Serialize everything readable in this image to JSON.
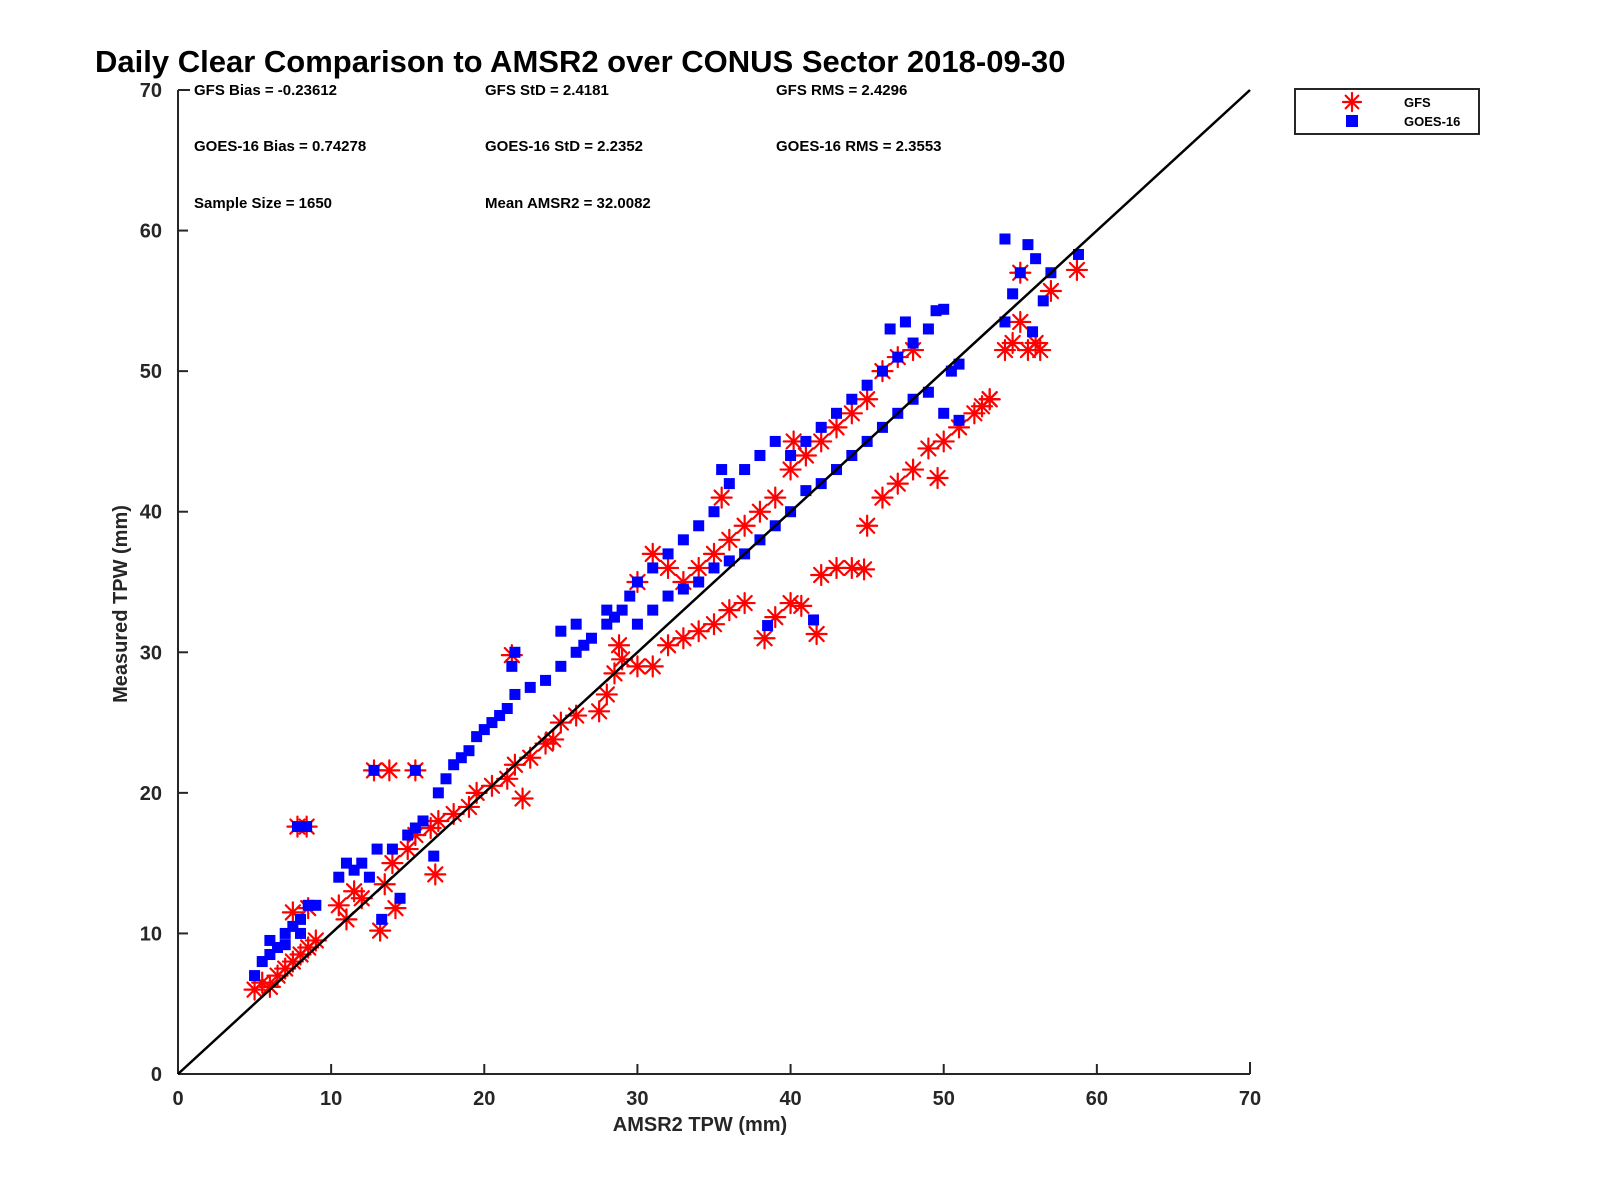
{
  "chart_data": {
    "type": "scatter",
    "title": "Daily Clear Comparison to AMSR2 over CONUS Sector 2018-09-30",
    "xlabel": "AMSR2 TPW (mm)",
    "ylabel": "Measured TPW (mm)",
    "xlim": [
      0,
      70
    ],
    "ylim": [
      0,
      70
    ],
    "xticks": [
      "0",
      "10",
      "20",
      "30",
      "40",
      "50",
      "60",
      "70"
    ],
    "yticks": [
      "0",
      "10",
      "20",
      "30",
      "40",
      "50",
      "60",
      "70"
    ],
    "grid": false,
    "legend_position": "outside-top-right",
    "reference_line": {
      "x": [
        0,
        70
      ],
      "y": [
        0,
        70
      ]
    },
    "stats": {
      "gfs_bias": "GFS Bias = -0.23612",
      "gfs_std": "GFS StD = 2.4181",
      "gfs_rms": "GFS RMS = 2.4296",
      "goes_bias": "GOES-16 Bias = 0.74278",
      "goes_std": "GOES-16 StD = 2.2352",
      "goes_rms": "GOES-16 RMS = 2.3553",
      "sample_size": "Sample Size = 1650",
      "mean_amsr2": "Mean AMSR2 = 32.0082"
    },
    "series": [
      {
        "name": "GFS",
        "marker": "asterisk",
        "color": "#ff0000",
        "points": [
          [
            5,
            6
          ],
          [
            5.5,
            6.5
          ],
          [
            6,
            6.2
          ],
          [
            6.5,
            7
          ],
          [
            7,
            7.5
          ],
          [
            7.5,
            8
          ],
          [
            8,
            8.5
          ],
          [
            8.5,
            9
          ],
          [
            9,
            9.5
          ],
          [
            7.8,
            17.6
          ],
          [
            8.4,
            17.6
          ],
          [
            7.5,
            11.5
          ],
          [
            8.5,
            11.8
          ],
          [
            10.5,
            12
          ],
          [
            11,
            11
          ],
          [
            11.5,
            13
          ],
          [
            12,
            12.5
          ],
          [
            13.2,
            10.2
          ],
          [
            13.5,
            13.5
          ],
          [
            14.2,
            11.8
          ],
          [
            14,
            15
          ],
          [
            15,
            16
          ],
          [
            15.5,
            17
          ],
          [
            16.5,
            17.5
          ],
          [
            16.8,
            14.2
          ],
          [
            17,
            18
          ],
          [
            18,
            18.5
          ],
          [
            19,
            19
          ],
          [
            19.5,
            20
          ],
          [
            20.5,
            20.5
          ],
          [
            21.5,
            21
          ],
          [
            22,
            22
          ],
          [
            22.5,
            19.6
          ],
          [
            23,
            22.5
          ],
          [
            24,
            23.5
          ],
          [
            24.5,
            23.8
          ],
          [
            25,
            25
          ],
          [
            26,
            25.5
          ],
          [
            27.5,
            25.8
          ],
          [
            28,
            27
          ],
          [
            28.5,
            28.5
          ],
          [
            29,
            29.5
          ],
          [
            30,
            29
          ],
          [
            31,
            29
          ],
          [
            32,
            30.5
          ],
          [
            33,
            31
          ],
          [
            34,
            31.5
          ],
          [
            35,
            32
          ],
          [
            36,
            33
          ],
          [
            37,
            33.5
          ],
          [
            38.3,
            31
          ],
          [
            39,
            32.5
          ],
          [
            40,
            33.5
          ],
          [
            40.7,
            33.3
          ],
          [
            41.7,
            31.3
          ],
          [
            42,
            35.5
          ],
          [
            43,
            36
          ],
          [
            44,
            36
          ],
          [
            44.8,
            35.9
          ],
          [
            45,
            39
          ],
          [
            46,
            41
          ],
          [
            47,
            42
          ],
          [
            48,
            43
          ],
          [
            49,
            44.5
          ],
          [
            49.6,
            42.4
          ],
          [
            50,
            45
          ],
          [
            51,
            46
          ],
          [
            52,
            47
          ],
          [
            53,
            48
          ],
          [
            21.8,
            29.8
          ],
          [
            12.8,
            21.6
          ],
          [
            13.8,
            21.6
          ],
          [
            15.5,
            21.6
          ],
          [
            28.8,
            30.5
          ],
          [
            30,
            35
          ],
          [
            31,
            37
          ],
          [
            32,
            36
          ],
          [
            33,
            35
          ],
          [
            34,
            36
          ],
          [
            35,
            37
          ],
          [
            35.5,
            41
          ],
          [
            36,
            38
          ],
          [
            37,
            39
          ],
          [
            38,
            40
          ],
          [
            39,
            41
          ],
          [
            40,
            43
          ],
          [
            40.2,
            45
          ],
          [
            41,
            44
          ],
          [
            42,
            45
          ],
          [
            43,
            46
          ],
          [
            44,
            47
          ],
          [
            45,
            48
          ],
          [
            46,
            50
          ],
          [
            47,
            51
          ],
          [
            48,
            51.5
          ],
          [
            54.5,
            52
          ],
          [
            55,
            53.5
          ],
          [
            55.5,
            51.5
          ],
          [
            56,
            52
          ],
          [
            56.3,
            51.5
          ],
          [
            57,
            55.7
          ],
          [
            55,
            57
          ],
          [
            58.7,
            57.2
          ],
          [
            54,
            51.5
          ],
          [
            52.5,
            47.5
          ],
          [
            53,
            48
          ]
        ]
      },
      {
        "name": "GOES-16",
        "marker": "square",
        "color": "#0000ff",
        "points": [
          [
            5,
            7
          ],
          [
            5.5,
            8
          ],
          [
            6,
            8.5
          ],
          [
            6.5,
            9
          ],
          [
            7,
            10
          ],
          [
            7.5,
            10.5
          ],
          [
            8,
            11
          ],
          [
            8.5,
            12
          ],
          [
            9,
            12
          ],
          [
            6,
            9.5
          ],
          [
            7,
            9.2
          ],
          [
            8,
            10
          ],
          [
            10.5,
            14
          ],
          [
            11,
            15
          ],
          [
            11.5,
            14.5
          ],
          [
            12,
            15
          ],
          [
            12.5,
            14
          ],
          [
            13,
            16
          ],
          [
            13.3,
            11
          ],
          [
            14,
            16
          ],
          [
            14.5,
            12.5
          ],
          [
            15,
            17
          ],
          [
            15.5,
            17.5
          ],
          [
            16,
            18
          ],
          [
            16.7,
            15.5
          ],
          [
            17,
            20
          ],
          [
            17.5,
            21
          ],
          [
            18,
            22
          ],
          [
            18.5,
            22.5
          ],
          [
            19,
            23
          ],
          [
            19.5,
            24
          ],
          [
            20,
            24.5
          ],
          [
            20.5,
            25
          ],
          [
            21,
            25.5
          ],
          [
            21.5,
            26
          ],
          [
            21.8,
            29
          ],
          [
            22,
            27
          ],
          [
            23,
            27.5
          ],
          [
            24,
            28
          ],
          [
            25,
            29
          ],
          [
            26,
            30
          ],
          [
            26.5,
            30.5
          ],
          [
            27,
            31
          ],
          [
            28,
            32
          ],
          [
            28.5,
            32.5
          ],
          [
            29,
            33
          ],
          [
            29.5,
            34
          ],
          [
            30,
            35
          ],
          [
            31,
            36
          ],
          [
            32,
            37
          ],
          [
            33,
            38
          ],
          [
            34,
            39
          ],
          [
            35,
            40
          ],
          [
            35.5,
            43
          ],
          [
            36,
            42
          ],
          [
            37,
            43
          ],
          [
            38,
            44
          ],
          [
            39,
            45
          ],
          [
            40,
            44
          ],
          [
            41,
            45
          ],
          [
            42,
            46
          ],
          [
            43,
            47
          ],
          [
            44,
            48
          ],
          [
            45,
            49
          ],
          [
            46,
            50
          ],
          [
            46.5,
            53
          ],
          [
            47,
            51
          ],
          [
            47.5,
            53.5
          ],
          [
            48,
            52
          ],
          [
            49,
            53
          ],
          [
            49.5,
            54.3
          ],
          [
            50,
            54.4
          ],
          [
            50.5,
            50
          ],
          [
            51,
            50.5
          ],
          [
            30,
            32
          ],
          [
            31,
            33
          ],
          [
            32,
            34
          ],
          [
            33,
            34.5
          ],
          [
            34,
            35
          ],
          [
            35,
            36
          ],
          [
            36,
            36.5
          ],
          [
            37,
            37
          ],
          [
            38,
            38
          ],
          [
            39,
            39
          ],
          [
            40,
            40
          ],
          [
            41,
            41.5
          ],
          [
            42,
            42
          ],
          [
            43,
            43
          ],
          [
            44,
            44
          ],
          [
            45,
            45
          ],
          [
            46,
            46
          ],
          [
            47,
            47
          ],
          [
            48,
            48
          ],
          [
            49,
            48.5
          ],
          [
            50,
            47
          ],
          [
            51,
            46.5
          ],
          [
            41.5,
            32.3
          ],
          [
            38.5,
            31.9
          ],
          [
            54,
            59.4
          ],
          [
            55.5,
            59
          ],
          [
            56,
            58
          ],
          [
            55,
            57
          ],
          [
            54.5,
            55.5
          ],
          [
            56.5,
            55
          ],
          [
            57,
            57
          ],
          [
            58.8,
            58.3
          ],
          [
            55.8,
            52.8
          ],
          [
            54,
            53.5
          ],
          [
            7.8,
            17.6
          ],
          [
            8.4,
            17.6
          ],
          [
            12.8,
            21.6
          ],
          [
            15.5,
            21.6
          ],
          [
            22,
            30
          ],
          [
            25,
            31.5
          ],
          [
            26,
            32
          ],
          [
            28,
            33
          ]
        ]
      }
    ]
  }
}
